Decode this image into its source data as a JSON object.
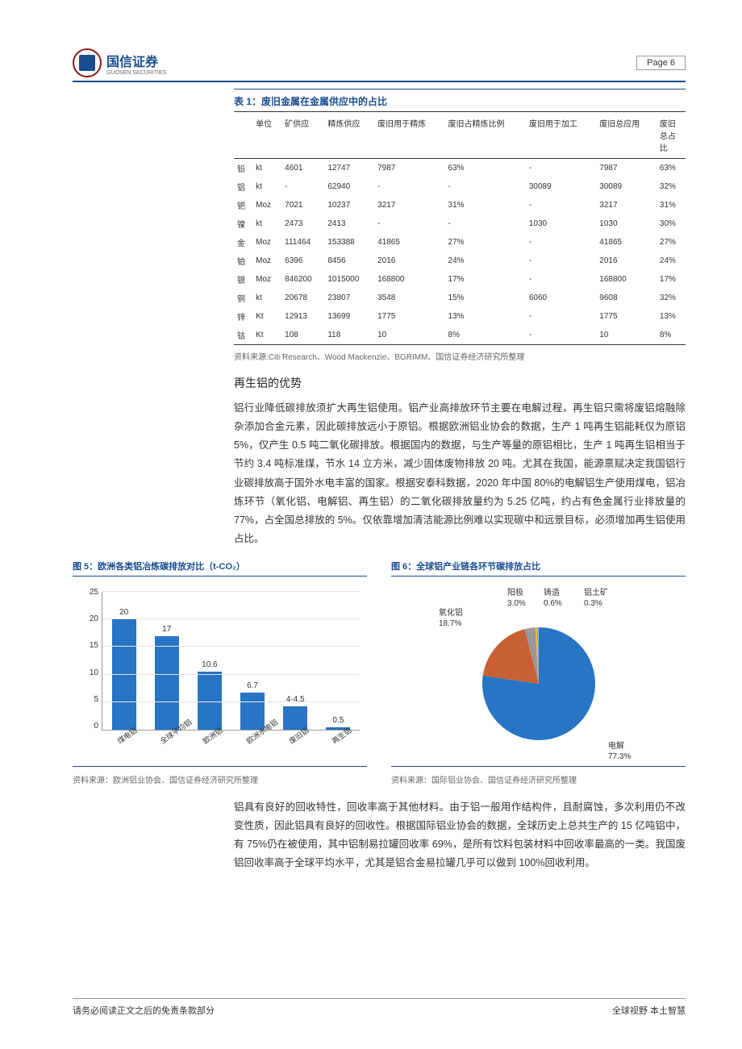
{
  "header": {
    "logo_text": "国信证券",
    "logo_sub": "GUOSEN SECURITIES",
    "page_label": "Page  6"
  },
  "table1": {
    "title": "表 1：废旧金属在金属供应中的占比",
    "columns": [
      "",
      "单位",
      "矿供应",
      "精炼供应",
      "废旧用于精炼",
      "废旧占精炼比例",
      "废旧用于加工",
      "废旧总应用",
      "废旧总占比"
    ],
    "rows": [
      [
        "铅",
        "kt",
        "4601",
        "12747",
        "7987",
        "63%",
        "-",
        "7987",
        "63%"
      ],
      [
        "铝",
        "kt",
        "-",
        "62940",
        "-",
        "-",
        "30089",
        "30089",
        "32%"
      ],
      [
        "钯",
        "Moz",
        "7021",
        "10237",
        "3217",
        "31%",
        "-",
        "3217",
        "31%"
      ],
      [
        "镍",
        "kt",
        "2473",
        "2413",
        "-",
        "-",
        "1030",
        "1030",
        "30%"
      ],
      [
        "金",
        "Moz",
        "111464",
        "153388",
        "41865",
        "27%",
        "-",
        "41865",
        "27%"
      ],
      [
        "铂",
        "Moz",
        "6396",
        "8456",
        "2016",
        "24%",
        "-",
        "2016",
        "24%"
      ],
      [
        "银",
        "Moz",
        "846200",
        "1015000",
        "168800",
        "17%",
        "-",
        "168800",
        "17%"
      ],
      [
        "铜",
        "kt",
        "20678",
        "23807",
        "3548",
        "15%",
        "6060",
        "9608",
        "32%"
      ],
      [
        "锌",
        "Kt",
        "12913",
        "13699",
        "1775",
        "13%",
        "-",
        "1775",
        "13%"
      ],
      [
        "钴",
        "Kt",
        "108",
        "118",
        "10",
        "8%",
        "-",
        "10",
        "8%"
      ]
    ],
    "source": "资料来源:Citi Research、Wood Mackenzie、BGRIMM、国信证券经济研究所整理"
  },
  "section_title": "再生铝的优势",
  "paragraph1": "铝行业降低碳排放须扩大再生铝使用。铝产业高排放环节主要在电解过程，再生铝只需将废铝熔融除杂添加合金元素，因此碳排放远小于原铝。根据欧洲铝业协会的数据，生产 1 吨再生铝能耗仅为原铝 5%，仅产生 0.5 吨二氧化碳排放。根据国内的数据，与生产等量的原铝相比，生产 1 吨再生铝相当于节约 3.4 吨标准煤，节水 14 立方米，减少固体废物排放 20 吨。尤其在我国，能源禀赋决定我国铝行业碳排放高于国外水电丰富的国家。根据安泰科数据，2020 年中国 80%的电解铝生产使用煤电，铝冶炼环节（氧化铝、电解铝、再生铝）的二氧化碳排放量约为 5.25 亿吨，约占有色金属行业排放量的 77%，占全国总排放的 5%。仅依靠增加清洁能源比例难以实现碳中和远景目标，必须增加再生铝使用占比。",
  "chart5": {
    "title": "图 5：欧洲各类铝冶炼碳排放对比（t-CO₂）",
    "type": "bar",
    "y_max": 25,
    "y_ticks": [
      0,
      5,
      10,
      15,
      20,
      25
    ],
    "categories": [
      "煤电铝",
      "全球平均铝",
      "欧洲铝",
      "欧洲水电铝",
      "废旧铝",
      "再生铝"
    ],
    "values": [
      20,
      17,
      10.6,
      6.7,
      4.25,
      0.5
    ],
    "labels": [
      "20",
      "17",
      "10.6",
      "6.7",
      "4-4.5",
      "0.5"
    ],
    "bar_color": "#2874c5",
    "grid_color": "#e5e5e5",
    "source": "资料来源：欧洲铝业协会、国信证券经济研究所整理"
  },
  "chart6": {
    "title": "图 6：全球铝产业链各环节碳排放占比",
    "type": "pie",
    "slices": [
      {
        "label": "电解",
        "value": 77.3,
        "color": "#2874c5"
      },
      {
        "label": "氧化铝",
        "value": 18.7,
        "color": "#c95f35"
      },
      {
        "label": "阳极",
        "value": 3.0,
        "color": "#999999"
      },
      {
        "label": "铸造",
        "value": 0.6,
        "color": "#e8b83d"
      },
      {
        "label": "铝土矿",
        "value": 0.3,
        "color": "#5a8fc7"
      }
    ],
    "source": "资料来源：国际铝业协会、国信证券经济研究所整理"
  },
  "paragraph2": "铝具有良好的回收特性，回收率高于其他材料。由于铝一般用作结构件，且耐腐蚀，多次利用仍不改变性质，因此铝具有良好的回收性。根据国际铝业协会的数据，全球历史上总共生产的 15 亿吨铝中，有 75%仍在被使用，其中铝制易拉罐回收率 69%，是所有饮料包装材料中回收率最高的一类。我国废铝回收率高于全球平均水平，尤其是铝合金易拉罐几乎可以做到 100%回收利用。",
  "footer": {
    "left": "请务必阅读正文之后的免责条款部分",
    "right": "全球视野  本土智慧"
  }
}
